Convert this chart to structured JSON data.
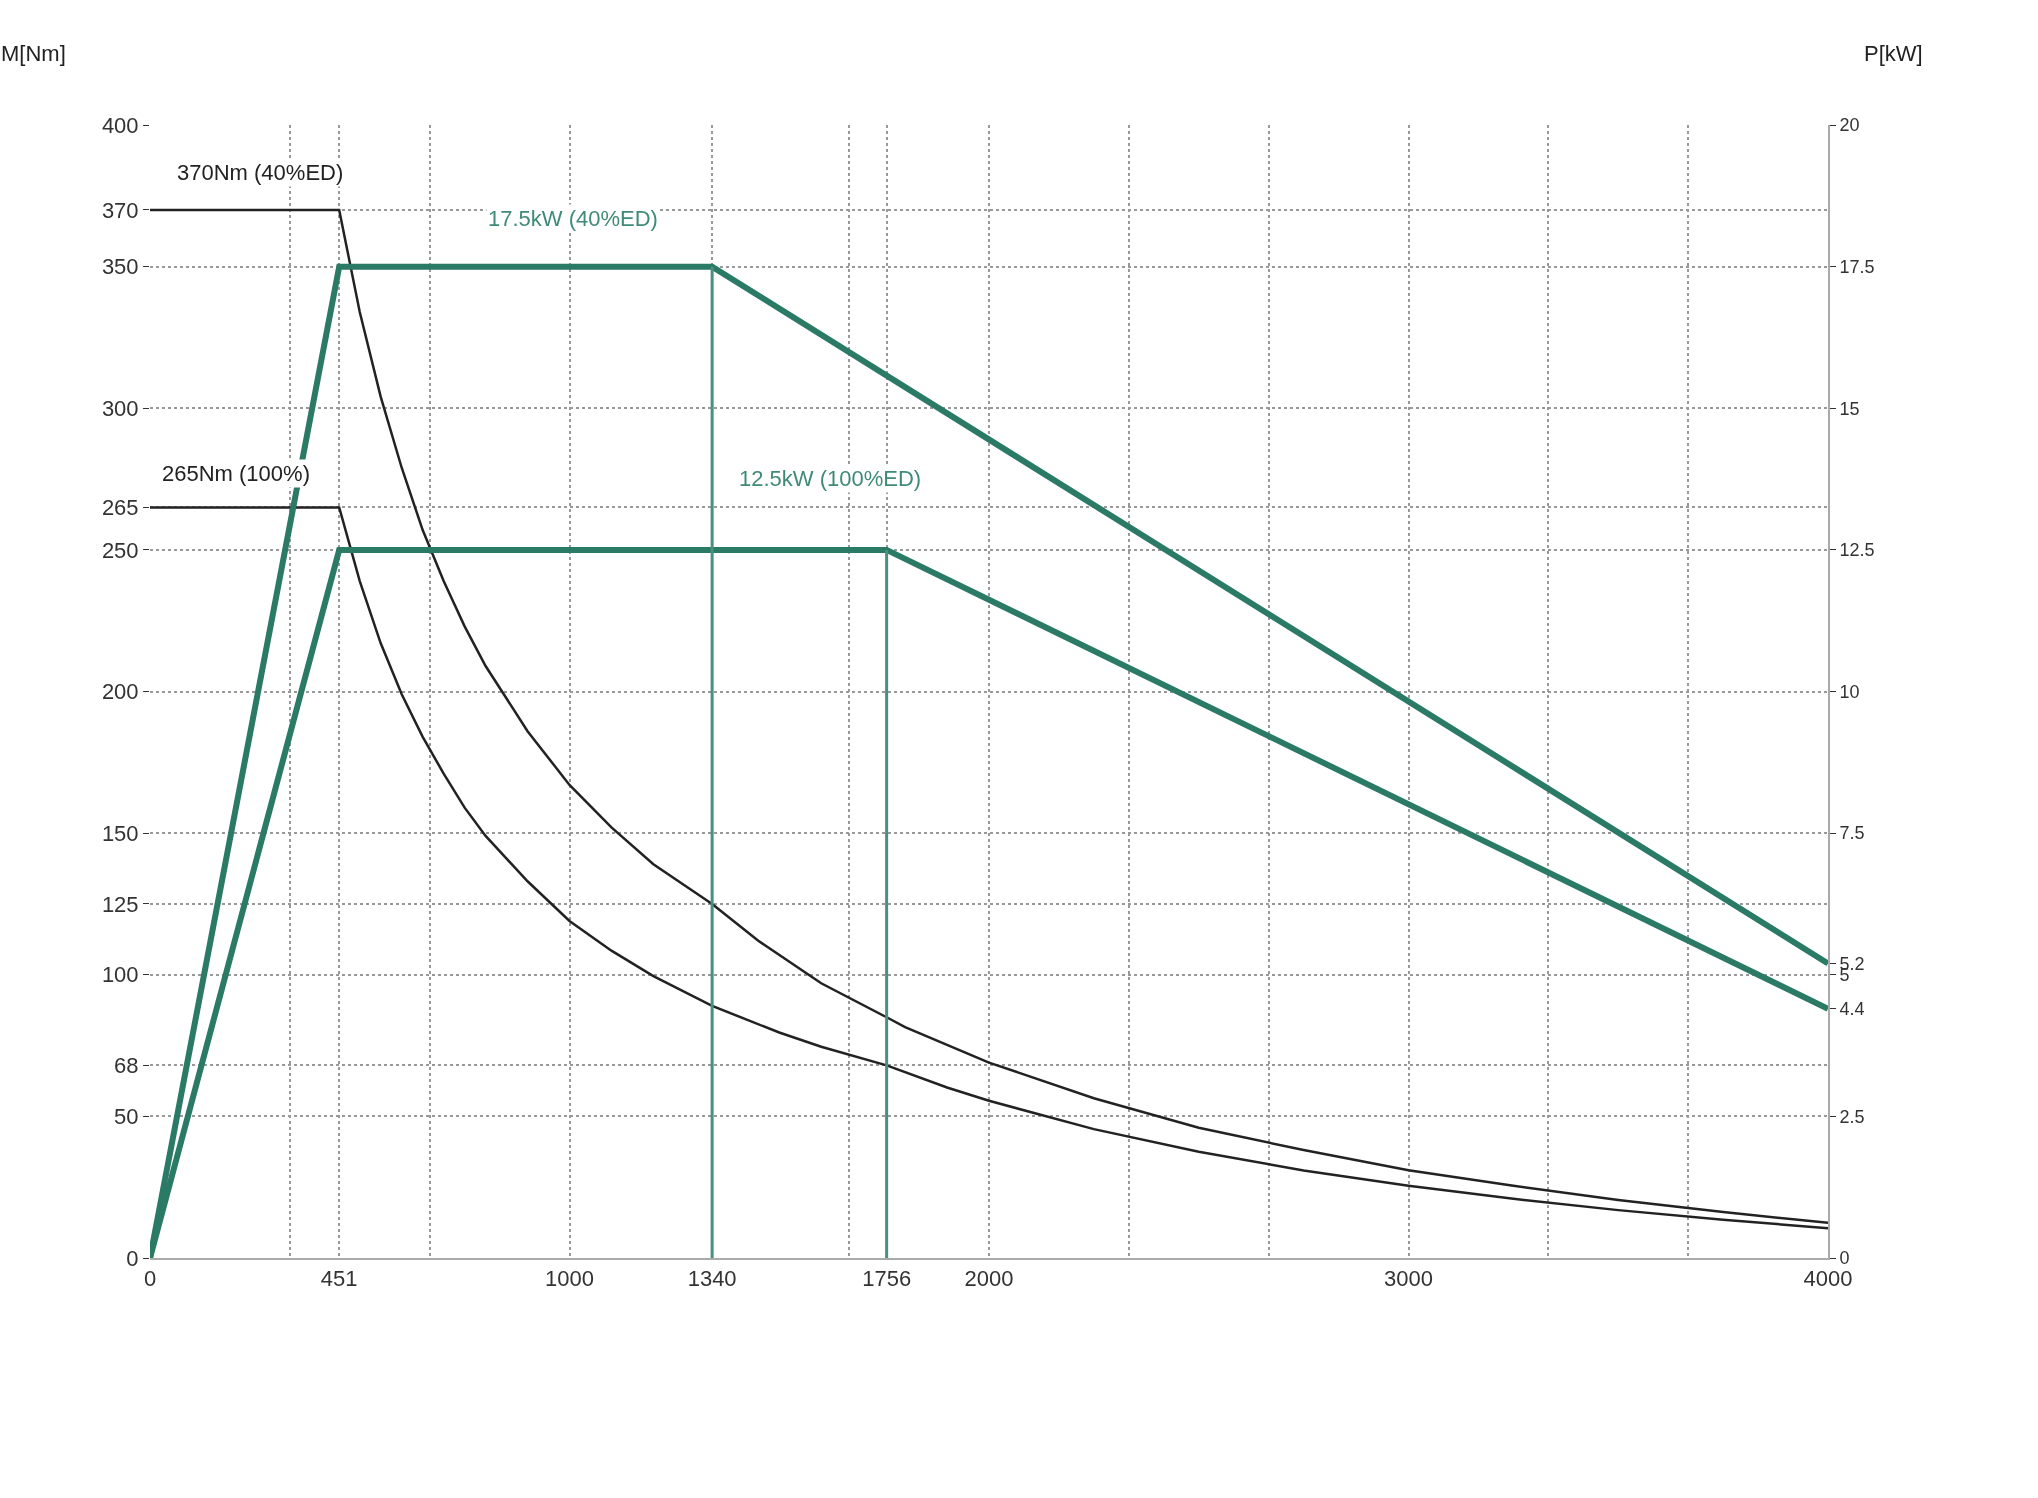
{
  "chart_data": {
    "type": "line",
    "xlabel": null,
    "ylabel": "M[Nm]",
    "y2label": "P[kW]",
    "xlim": [
      0,
      4000
    ],
    "xticks": [
      0,
      {
        "value": 333.3,
        "label": null
      },
      451,
      {
        "value": 666.7,
        "label": null
      },
      1000,
      1340,
      {
        "value": 1666.7,
        "label": null
      },
      1756,
      2000,
      {
        "value": 2333.3,
        "label": null
      },
      {
        "value": 2666.7,
        "label": null
      },
      3000,
      {
        "value": 3333.3,
        "label": null
      },
      {
        "value": 3666.7,
        "label": null
      },
      4000
    ],
    "ylim": [
      0,
      400
    ],
    "yticks": [
      0,
      50,
      68,
      100,
      125,
      150,
      200,
      250,
      265,
      300,
      350,
      370,
      400
    ],
    "y2lim": [
      0,
      20
    ],
    "y2ticks": [
      0,
      2.5,
      4.4,
      5,
      5.2,
      7.5,
      10,
      12.5,
      15,
      17.5,
      20
    ],
    "grid": true,
    "line_style": "solid",
    "marker": "none",
    "series": [
      {
        "color": "#222222",
        "x": [
          0,
          451,
          500,
          550,
          600,
          650,
          700,
          750,
          800,
          900,
          1000,
          1100,
          1200,
          1340,
          1450,
          1600,
          1756,
          1800,
          2000,
          2250,
          2500,
          2750,
          3000,
          3250,
          3500,
          3750,
          4000
        ],
        "values": [
          370,
          370,
          334,
          304,
          279,
          257,
          239,
          223,
          209,
          186,
          167,
          152,
          139,
          125,
          112,
          97,
          85,
          81.5,
          69,
          56.4,
          46,
          38.1,
          31,
          25.5,
          20.5,
          16.2,
          12.4
        ]
      },
      {
        "color": "#222222",
        "x": [
          0,
          451,
          500,
          550,
          600,
          650,
          700,
          750,
          800,
          900,
          1000,
          1100,
          1200,
          1340,
          1500,
          1600,
          1756,
          1900,
          2000,
          2250,
          2500,
          2750,
          3000,
          3250,
          3500,
          3750,
          4000
        ],
        "values": [
          265,
          265,
          239,
          217,
          199,
          184,
          171,
          159,
          149,
          133,
          119,
          108.5,
          99.5,
          89,
          79.6,
          74.6,
          68,
          60.2,
          55.5,
          45.5,
          37.5,
          30.9,
          25.5,
          20.9,
          16.9,
          13.5,
          10.5
        ]
      },
      {
        "color": "#2a7a66",
        "axis": "y2",
        "x": [
          0,
          451,
          1340,
          4000
        ],
        "values": [
          0,
          17.5,
          17.5,
          5.2
        ]
      },
      {
        "color": "#2a7a66",
        "axis": "y2",
        "x": [
          0,
          451,
          1756,
          4000
        ],
        "values": [
          0,
          12.5,
          12.5,
          4.4
        ]
      },
      {
        "color": "#4a8f7f",
        "axis": "y2",
        "x": [
          1340,
          1340
        ],
        "values": [
          0,
          17.5
        ]
      },
      {
        "color": "#4a8f7f",
        "axis": "y2",
        "x": [
          1756,
          1756
        ],
        "values": [
          0,
          12.5
        ]
      }
    ],
    "annotations": [
      "370Nm (40%ED)",
      "265Nm (100%)",
      "17.5kW (40%ED)",
      "12.5kW (100%ED)"
    ]
  }
}
